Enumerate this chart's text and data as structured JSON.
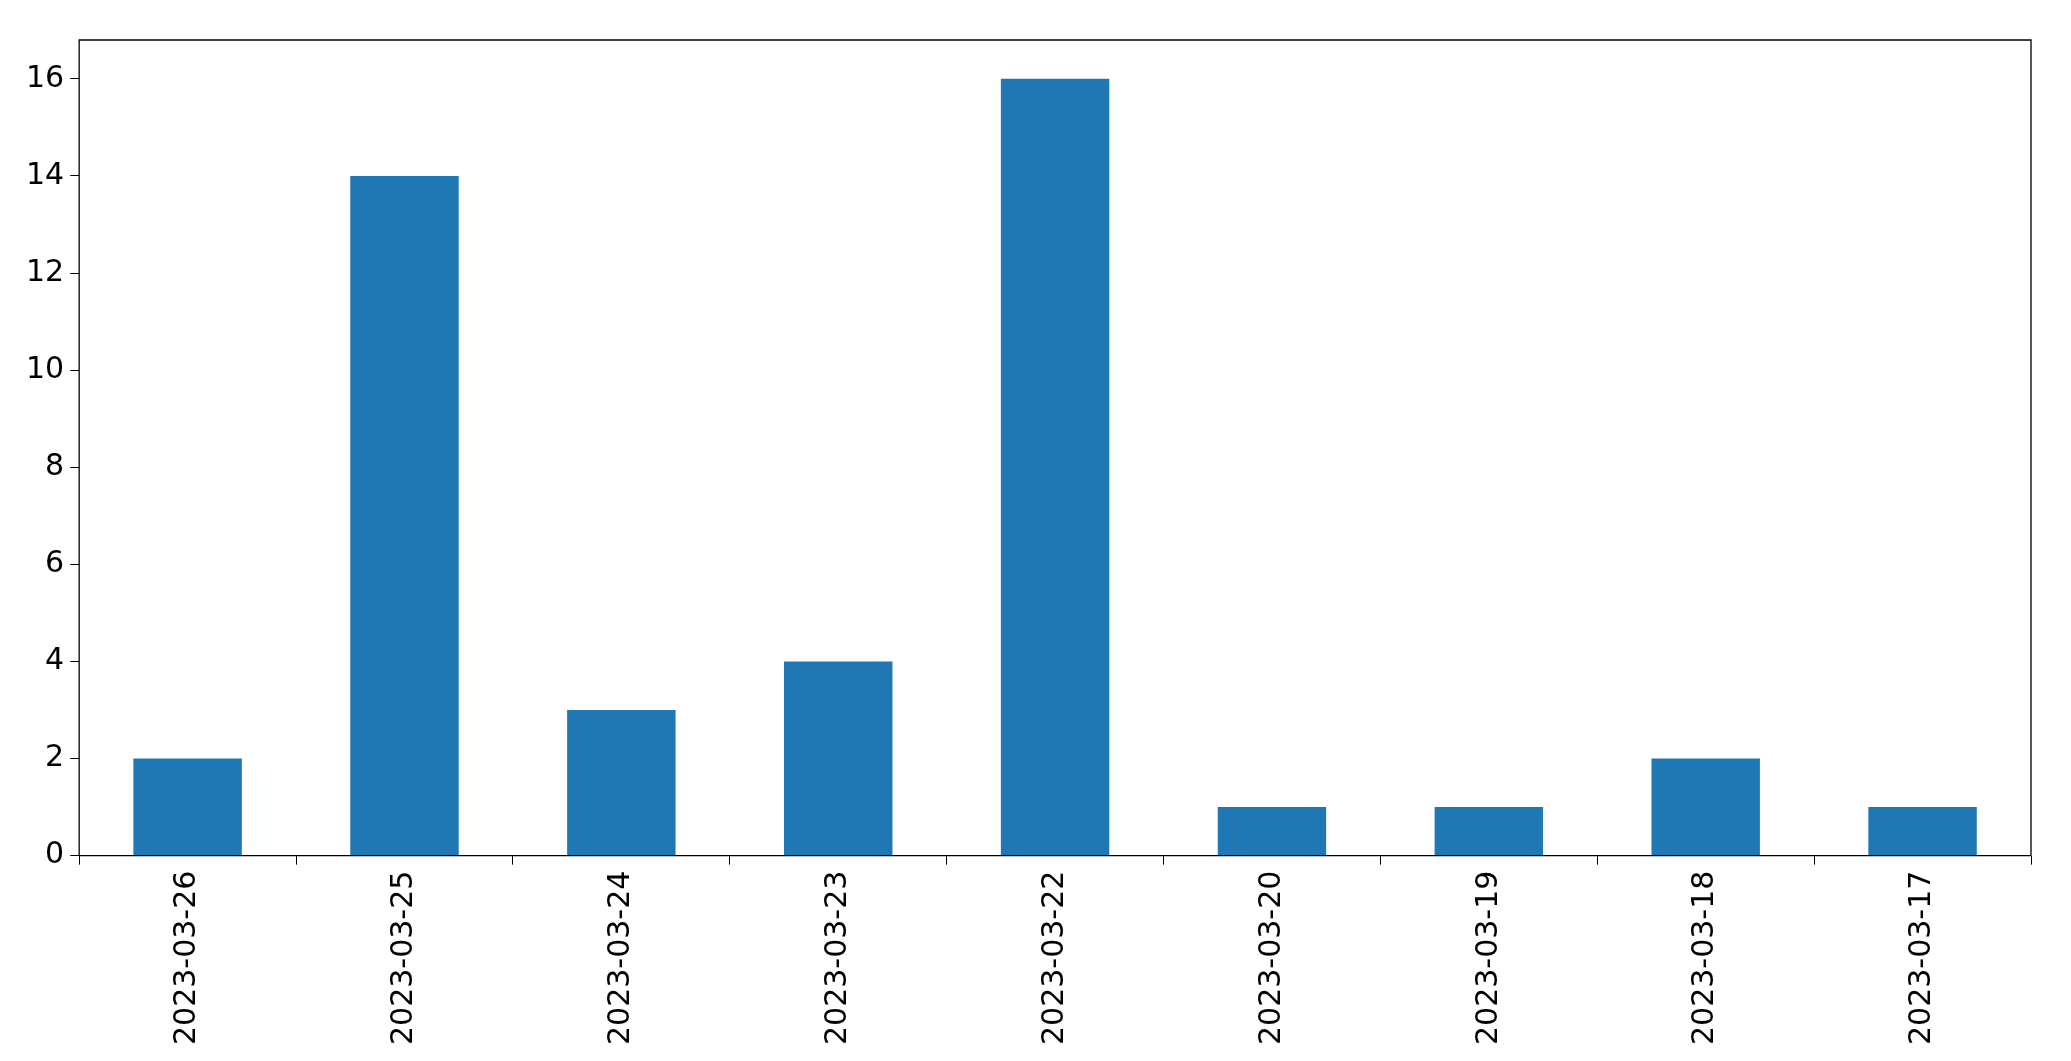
{
  "chart_data": {
    "type": "bar",
    "categories": [
      "2023-03-26",
      "2023-03-25",
      "2023-03-24",
      "2023-03-23",
      "2023-03-22",
      "2023-03-20",
      "2023-03-19",
      "2023-03-18",
      "2023-03-17"
    ],
    "values": [
      2,
      14,
      3,
      4,
      16,
      1,
      1,
      2,
      1
    ],
    "color": "#1f77b4",
    "ylim": [
      0,
      16.8
    ],
    "yticks": [
      0,
      2,
      4,
      6,
      8,
      10,
      12,
      14,
      16
    ],
    "grid": false,
    "legend": false
  }
}
